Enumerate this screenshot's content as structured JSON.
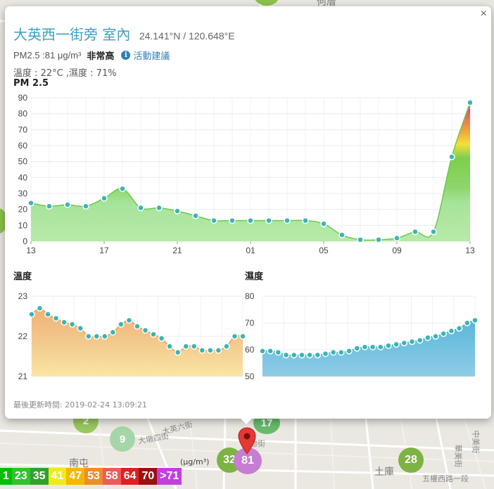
{
  "map": {
    "street_labels": [
      "大英六街",
      "大墩四街",
      "中美街",
      "五權西路一段",
      "華美街",
      "德街"
    ],
    "district_labels": [
      "南屯",
      "土庫",
      "何厝"
    ],
    "station_markers": [
      {
        "value": "2",
        "color": "#8bc34a"
      },
      {
        "value": "9",
        "color": "#a5d6a7"
      },
      {
        "value": "17",
        "color": "#66bb6a"
      },
      {
        "value": "32",
        "color": "#7cb342"
      },
      {
        "value": "81",
        "color": "#c77dd0"
      },
      {
        "value": "28",
        "color": "#7cb342"
      }
    ],
    "legend": {
      "unit": "(μg/m³)",
      "cells": [
        {
          "label": "1",
          "color": "#00c000"
        },
        {
          "label": "23",
          "color": "#2ec42e"
        },
        {
          "label": "35",
          "color": "#33a02c"
        },
        {
          "label": "41",
          "color": "#f0ea1b"
        },
        {
          "label": "47",
          "color": "#f5b700"
        },
        {
          "label": "53",
          "color": "#f08c2a"
        },
        {
          "label": "58",
          "color": "#ef5a5a"
        },
        {
          "label": "64",
          "color": "#e02020"
        },
        {
          "label": "70",
          "color": "#9c1010"
        },
        {
          "label": ">71",
          "color": "#c13fe0"
        }
      ]
    }
  },
  "popup": {
    "close_label": "×",
    "title": "大英西一街旁 室內",
    "coords": "24.141°N / 120.648°E",
    "pm25_text": "PM2.5 :81 μg/m³",
    "level_text": "非常高",
    "info_icon": "i",
    "advice_link": "活動建議",
    "env_text": "溫度 : 22°C ,濕度 : 71%",
    "updated_label": "最後更新時間:",
    "updated_time": "2019-02-24 13:09:21"
  },
  "chart_data": [
    {
      "type": "area",
      "title": "PM 2.5",
      "x_tick_labels": [
        "13",
        "17",
        "21",
        "01",
        "05",
        "09",
        "13"
      ],
      "y_ticks": [
        0,
        10,
        20,
        30,
        40,
        50,
        60,
        70,
        80,
        90
      ],
      "ylim": [
        0,
        90
      ],
      "grid": true,
      "point_color": "#3ab5b5",
      "values": [
        24,
        22,
        23,
        22,
        27,
        33,
        21,
        21,
        19,
        16,
        13,
        13,
        13,
        13,
        13,
        13,
        11,
        4,
        1,
        1,
        2,
        6,
        6,
        53,
        87
      ]
    },
    {
      "type": "area",
      "title": "溫度",
      "y_ticks": [
        21,
        22,
        23
      ],
      "ylim": [
        21,
        23
      ],
      "grid": true,
      "point_color": "#3ab5b5",
      "values": [
        22.55,
        22.7,
        22.55,
        22.45,
        22.35,
        22.3,
        22.2,
        22.0,
        22.0,
        22.0,
        22.1,
        22.3,
        22.4,
        22.25,
        22.15,
        22.05,
        21.95,
        21.75,
        21.6,
        21.75,
        21.75,
        21.65,
        21.65,
        21.65,
        21.75,
        22.0,
        22.0
      ]
    },
    {
      "type": "area",
      "title": "濕度",
      "y_ticks": [
        50,
        60,
        70,
        80
      ],
      "ylim": [
        50,
        80
      ],
      "grid": true,
      "point_color": "#3ab5b5",
      "values": [
        59.5,
        59.5,
        59,
        58,
        58,
        58,
        58,
        58,
        58.5,
        59,
        59,
        59.5,
        60.5,
        61,
        61,
        61,
        61.5,
        62,
        62.5,
        63,
        63.5,
        64.5,
        65,
        66,
        67,
        68,
        70,
        71
      ]
    }
  ]
}
